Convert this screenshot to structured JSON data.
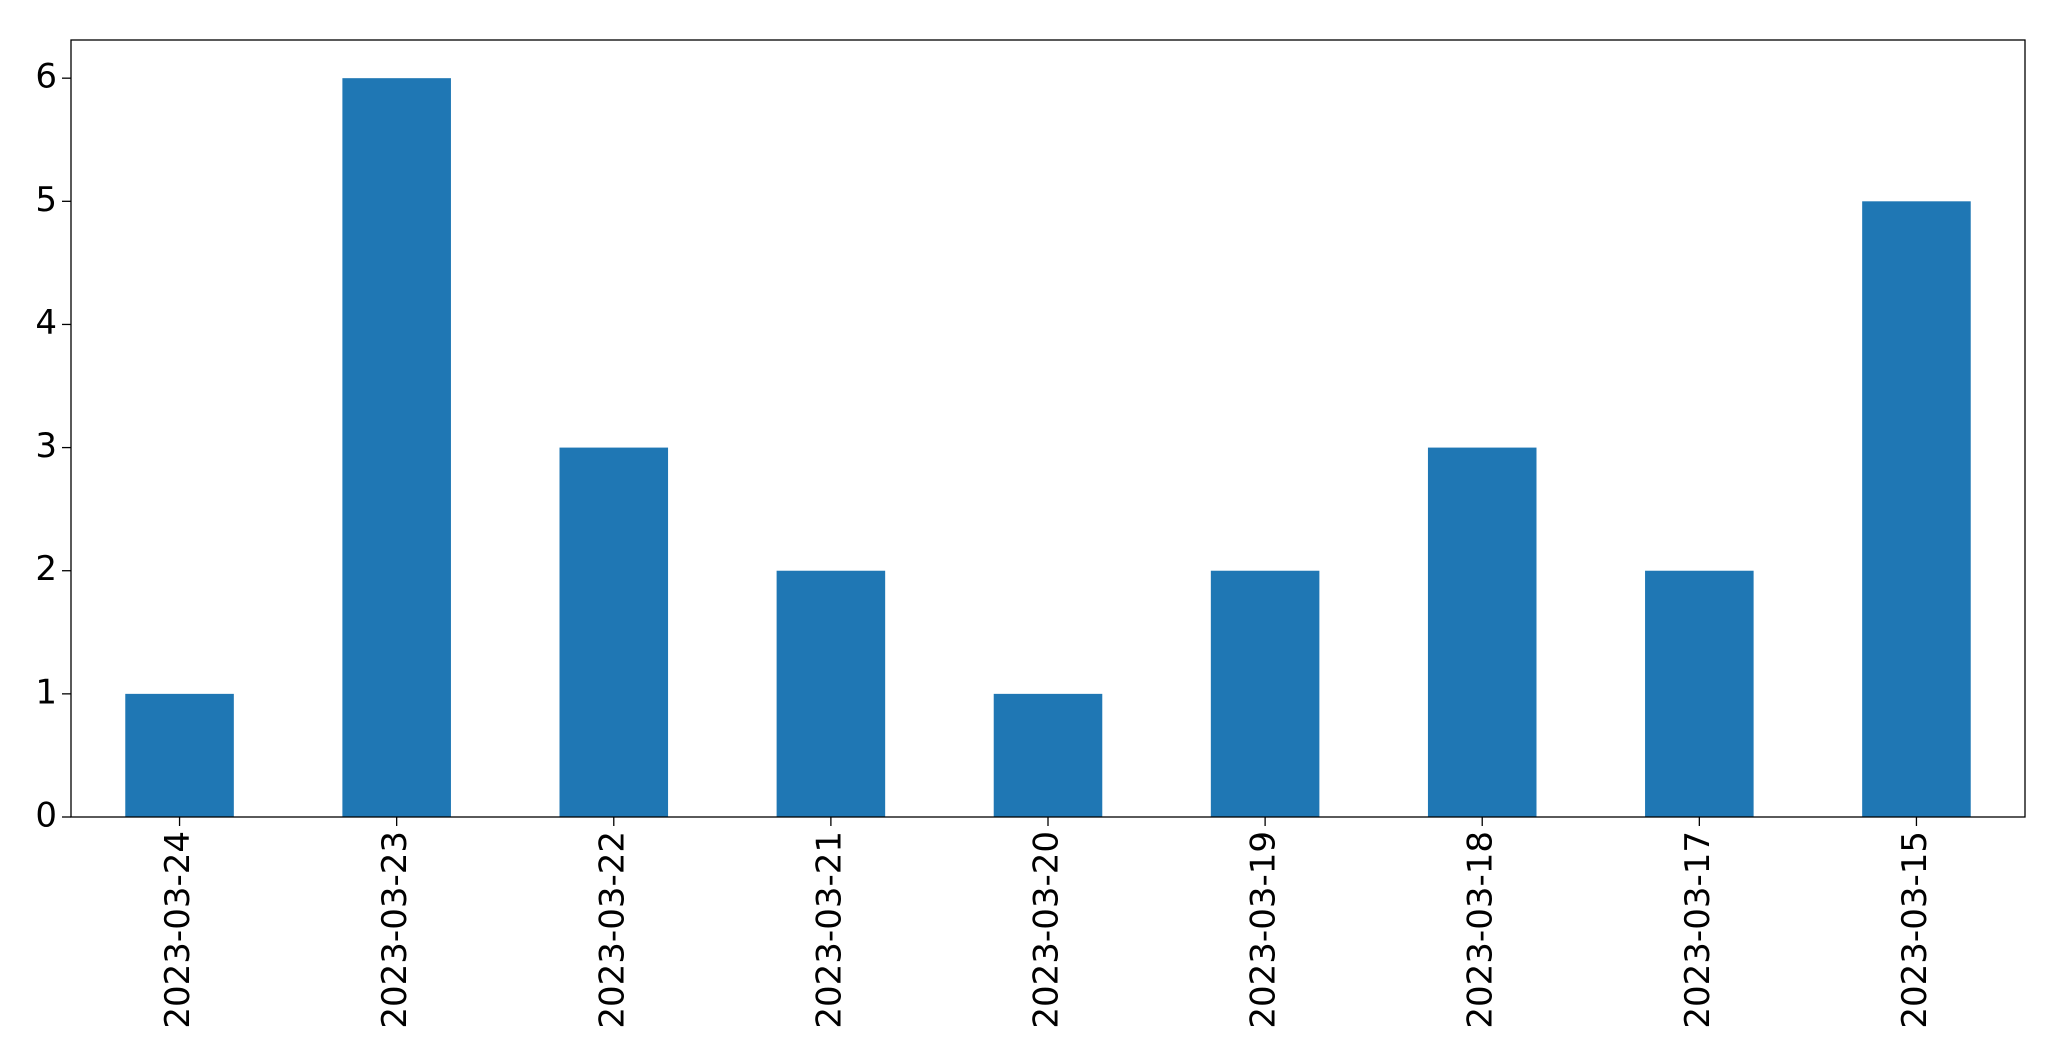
{
  "chart_data": {
    "type": "bar",
    "categories": [
      "2023-03-24",
      "2023-03-23",
      "2023-03-22",
      "2023-03-21",
      "2023-03-20",
      "2023-03-19",
      "2023-03-18",
      "2023-03-17",
      "2023-03-15"
    ],
    "values": [
      1,
      6,
      3,
      2,
      1,
      2,
      3,
      2,
      5
    ],
    "color": "#1f77b4",
    "ylim": [
      0,
      6.31
    ],
    "yticks": [
      0,
      1,
      2,
      3,
      4,
      5,
      6
    ],
    "grid": false
  }
}
